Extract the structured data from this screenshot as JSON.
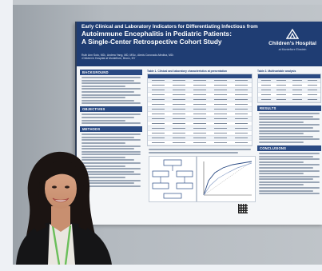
{
  "poster": {
    "title_line1": "Early Clinical and Laboratory Indicators for Differentiating Infectious from",
    "title_line2": "Autoimmune Encephalitis in Pediatric Patients:",
    "title_line3": "A Single-Center Retrospective Cohort Study",
    "authors": "Ruth Ann Soto, MD¹, Andrea Yang, MD, MSc¹, Alexis Coronado-Medina, MD¹",
    "affiliation": "¹Children's Hospital at Montefiore, Bronx, NY",
    "logo_name": "Children's Hospital",
    "logo_sub": "at Montefiore Einstein",
    "sections_left": [
      "BACKGROUND",
      "OBJECTIVES",
      "METHODS"
    ],
    "sections_right": [
      "RESULTS",
      "CONCLUSIONS"
    ],
    "table1_title": "Table 1. Clinical and laboratory characteristics at presentation",
    "table2_title": "Table 2. Multivariable analysis",
    "colors": {
      "header": "#1f3d73",
      "section": "#2a4a83",
      "background": "#f4f6f8"
    }
  },
  "scene": {
    "subject": "presenter-standing-beside-poster",
    "icons": [
      "hospital-logo-icon",
      "qr-code-icon",
      "line-chart-icon",
      "flowchart-icon"
    ]
  }
}
